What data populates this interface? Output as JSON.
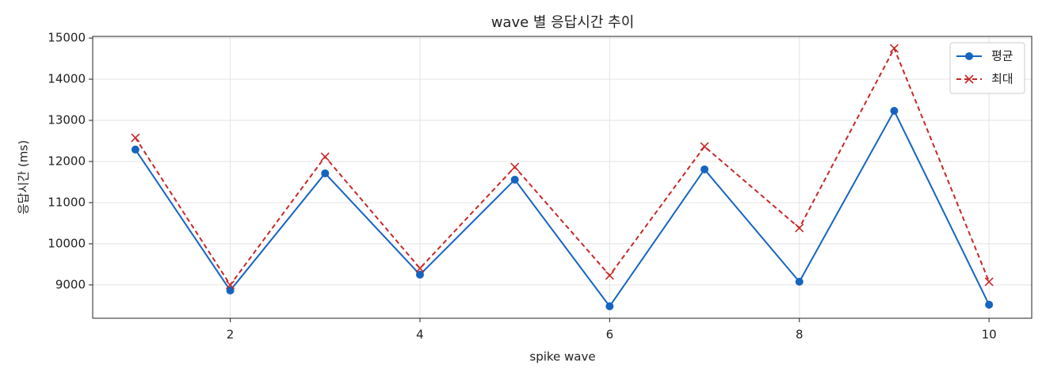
{
  "chart_data": {
    "type": "line",
    "title": "wave 별 응답시간 추이",
    "xlabel": "spike wave",
    "ylabel": "응답시간 (ms)",
    "x": [
      1,
      2,
      3,
      4,
      5,
      6,
      7,
      8,
      9,
      10
    ],
    "series": [
      {
        "name": "평균",
        "color": "#1565c0",
        "marker": "o",
        "linestyle": "solid",
        "values": [
          12290,
          8865,
          11712,
          9250,
          11558,
          8481,
          11808,
          9077,
          13231,
          8519
        ]
      },
      {
        "name": "최대",
        "color": "#c62828",
        "marker": "x",
        "linestyle": "dashed",
        "values": [
          12577,
          9000,
          12115,
          9404,
          11865,
          9231,
          12365,
          10385,
          14750,
          9077
        ]
      }
    ],
    "xlim": [
      0.55,
      10.45
    ],
    "xticks": [
      2,
      4,
      6,
      8,
      10
    ],
    "ylim": [
      8190,
      15040
    ],
    "yticks": [
      9000,
      10000,
      11000,
      12000,
      13000,
      14000,
      15000
    ],
    "grid": true,
    "legend": "upper right"
  }
}
